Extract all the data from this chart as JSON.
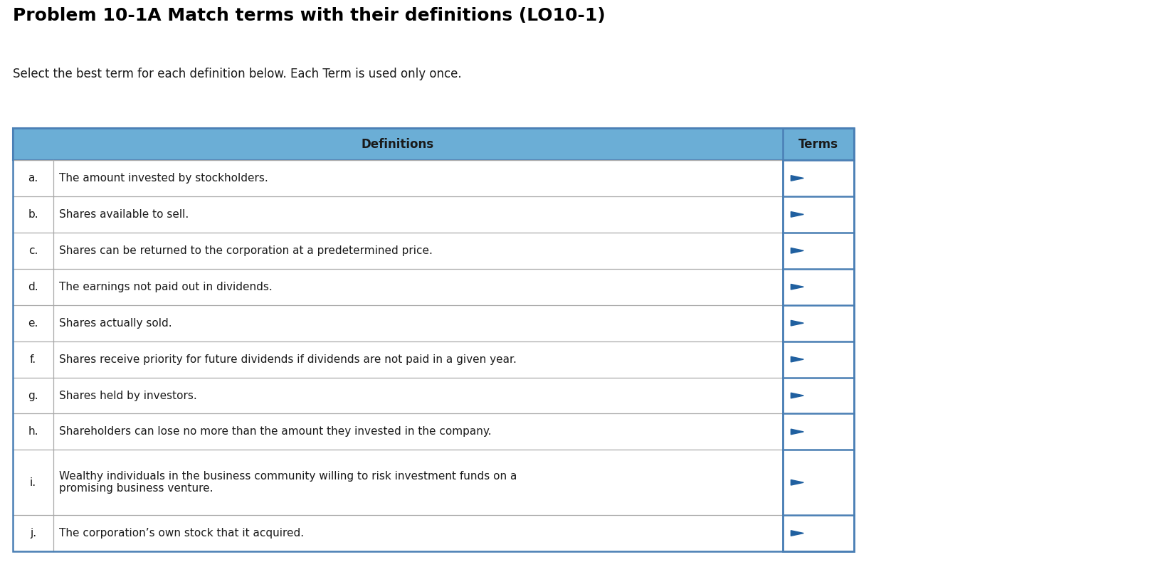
{
  "title": "Problem 10-1A Match terms with their definitions (LO10-1)",
  "subtitle": "Select the best term for each definition below. Each Term is used only once.",
  "header_bg_color": "#6baed6",
  "header_text_color": "#1a1a1a",
  "header_definitions": "Definitions",
  "header_terms": "Terms",
  "row_letters": [
    "a.",
    "b.",
    "c.",
    "d.",
    "e.",
    "f.",
    "g.",
    "h.",
    "i.",
    "j."
  ],
  "definitions": [
    "The amount invested by stockholders.",
    "Shares available to sell.",
    "Shares can be returned to the corporation at a predetermined price.",
    "The earnings not paid out in dividends.",
    "Shares actually sold.",
    "Shares receive priority for future dividends if dividends are not paid in a given year.",
    "Shares held by investors.",
    "Shareholders can lose no more than the amount they invested in the company.",
    "Wealthy individuals in the business community willing to risk investment funds on a\npromising business venture.",
    "The corporation’s own stock that it acquired."
  ],
  "bg_color": "#ffffff",
  "header_border_color": "#4a7fb5",
  "terms_border_color": "#4a7fb5",
  "row_line_color": "#aaaaaa",
  "arrow_color": "#2060a0",
  "title_fontsize": 18,
  "subtitle_fontsize": 12,
  "header_fontsize": 12,
  "row_fontsize": 11
}
